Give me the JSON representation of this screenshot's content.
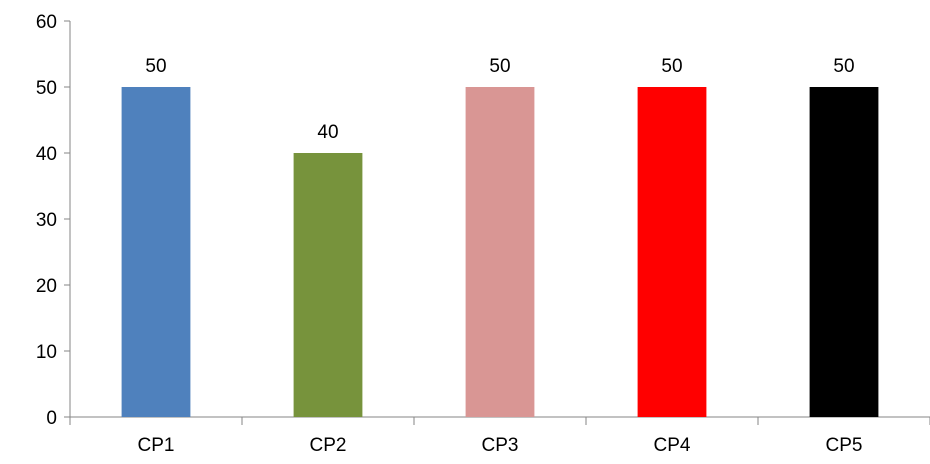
{
  "chart_data": {
    "type": "bar",
    "title": "",
    "xlabel": "",
    "ylabel": "",
    "categories": [
      "CP1",
      "CP2",
      "CP3",
      "CP4",
      "CP5"
    ],
    "values": [
      50,
      40,
      50,
      50,
      50
    ],
    "data_labels": [
      "50",
      "40",
      "50",
      "50",
      "50"
    ],
    "colors": [
      "#4F81BD",
      "#77933C",
      "#D99694",
      "#FF0000",
      "#000000"
    ],
    "ylim": [
      0,
      60
    ],
    "yticks": [
      0,
      10,
      20,
      30,
      40,
      50,
      60
    ],
    "ytick_labels": [
      "0",
      "10",
      "20",
      "30",
      "40",
      "50",
      "60"
    ],
    "grid": false,
    "legend": "none"
  }
}
